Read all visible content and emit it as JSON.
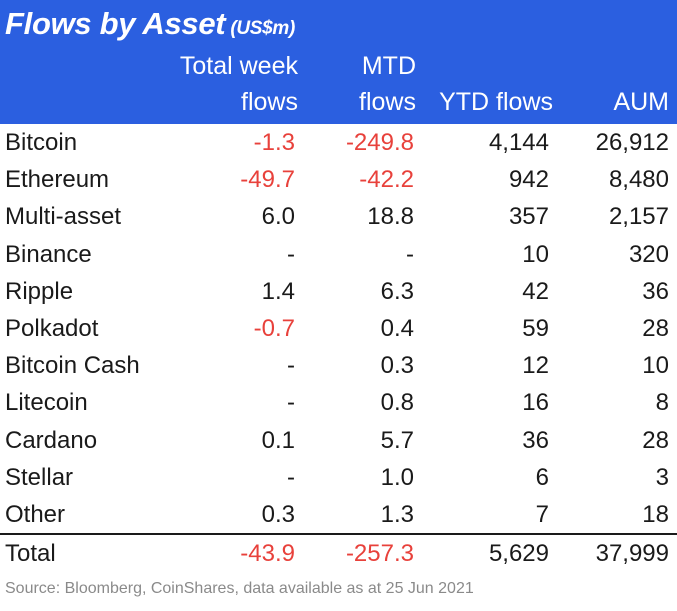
{
  "title": "Flows by Asset",
  "unit": "(US$m)",
  "columns": {
    "week_line1": "Total week",
    "week_line2": "flows",
    "mtd_line1": "MTD",
    "mtd_line2": "flows",
    "ytd": "YTD flows",
    "aum": "AUM"
  },
  "colors": {
    "header_bg": "#2b5fe0",
    "negative": "#e8413b"
  },
  "rows": [
    {
      "asset": "Bitcoin",
      "week": "-1.3",
      "mtd": "-249.8",
      "ytd": "4,144",
      "aum": "26,912"
    },
    {
      "asset": "Ethereum",
      "week": "-49.7",
      "mtd": "-42.2",
      "ytd": "942",
      "aum": "8,480"
    },
    {
      "asset": "Multi-asset",
      "week": "6.0",
      "mtd": "18.8",
      "ytd": "357",
      "aum": "2,157"
    },
    {
      "asset": "Binance",
      "week": "-",
      "mtd": "-",
      "ytd": "10",
      "aum": "320"
    },
    {
      "asset": "Ripple",
      "week": "1.4",
      "mtd": "6.3",
      "ytd": "42",
      "aum": "36"
    },
    {
      "asset": "Polkadot",
      "week": "-0.7",
      "mtd": "0.4",
      "ytd": "59",
      "aum": "28"
    },
    {
      "asset": "Bitcoin Cash",
      "week": "-",
      "mtd": "0.3",
      "ytd": "12",
      "aum": "10"
    },
    {
      "asset": "Litecoin",
      "week": "-",
      "mtd": "0.8",
      "ytd": "16",
      "aum": "8"
    },
    {
      "asset": "Cardano",
      "week": "0.1",
      "mtd": "5.7",
      "ytd": "36",
      "aum": "28"
    },
    {
      "asset": "Stellar",
      "week": "-",
      "mtd": "1.0",
      "ytd": "6",
      "aum": "3"
    },
    {
      "asset": "Other",
      "week": "0.3",
      "mtd": "1.3",
      "ytd": "7",
      "aum": "18"
    }
  ],
  "total": {
    "asset": "Total",
    "week": "-43.9",
    "mtd": "-257.3",
    "ytd": "5,629",
    "aum": "37,999"
  },
  "source": "Source: Bloomberg, CoinShares, data available as at 25 Jun 2021"
}
